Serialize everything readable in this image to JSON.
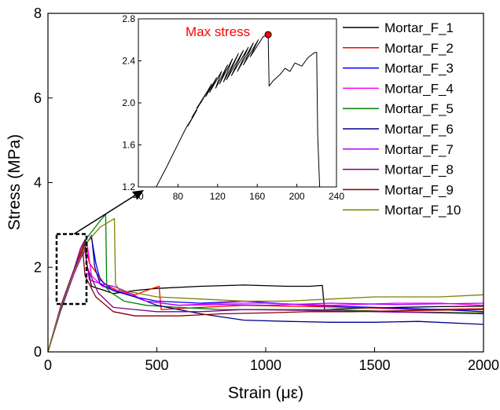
{
  "chart_data": [
    {
      "type": "line",
      "xlabel": "Strain (με)",
      "ylabel": "Stress (MPa)",
      "xlim": [
        0,
        2000
      ],
      "ylim": [
        0,
        8
      ],
      "xticks": [
        "0",
        "500",
        "1000",
        "1500",
        "2000"
      ],
      "yticks": [
        "0",
        "2",
        "4",
        "6",
        "8"
      ],
      "legend_position": "top-right",
      "series": [
        {
          "name": "Mortar_F_1",
          "color": "#000000",
          "x": [
            0,
            60,
            120,
            170,
            176,
            200,
            260,
            300,
            400,
            500,
            700,
            900,
            1100,
            1200,
            1260,
            1270,
            1400,
            1600,
            1800,
            2000
          ],
          "y": [
            0,
            1.05,
            1.9,
            2.65,
            2.15,
            1.55,
            1.45,
            1.38,
            1.45,
            1.5,
            1.55,
            1.58,
            1.55,
            1.55,
            1.57,
            1.0,
            1.03,
            1.05,
            1.07,
            1.08
          ]
        },
        {
          "name": "Mortar_F_2",
          "color": "#ff0000",
          "x": [
            0,
            60,
            120,
            160,
            170,
            190,
            260,
            320,
            400,
            480,
            510,
            520,
            700,
            900,
            1100,
            1400,
            1700,
            2000
          ],
          "y": [
            0,
            1.1,
            1.95,
            2.5,
            2.6,
            2.1,
            1.6,
            1.45,
            1.35,
            1.5,
            1.55,
            1.0,
            1.05,
            1.1,
            1.08,
            1.05,
            1.0,
            1.02
          ]
        },
        {
          "name": "Mortar_F_3",
          "color": "#0000ff",
          "x": [
            0,
            60,
            120,
            170,
            200,
            220,
            240,
            300,
            400,
            500,
            700,
            900,
            1200,
            1500,
            1800,
            2000
          ],
          "y": [
            0,
            1.05,
            1.9,
            2.55,
            2.7,
            2.1,
            1.7,
            1.45,
            1.3,
            1.2,
            1.15,
            1.2,
            1.1,
            1.05,
            1.0,
            0.95
          ]
        },
        {
          "name": "Mortar_F_4",
          "color": "#ff00ff",
          "x": [
            0,
            60,
            120,
            160,
            180,
            200,
            250,
            350,
            450,
            600,
            800,
            1000,
            1300,
            1600,
            1800,
            2000
          ],
          "y": [
            0,
            1.1,
            1.95,
            2.45,
            2.55,
            1.8,
            1.55,
            1.4,
            1.2,
            1.1,
            1.15,
            1.15,
            1.1,
            1.15,
            1.15,
            1.1
          ]
        },
        {
          "name": "Mortar_F_5",
          "color": "#008000",
          "x": [
            0,
            60,
            120,
            180,
            240,
            265,
            270,
            290,
            350,
            450,
            600,
            800,
            1000,
            1300,
            1600,
            2000
          ],
          "y": [
            0,
            1.05,
            1.9,
            2.7,
            3.1,
            3.25,
            1.5,
            1.4,
            1.2,
            1.1,
            1.05,
            1.0,
            1.0,
            1.0,
            0.95,
            0.92
          ]
        },
        {
          "name": "Mortar_F_6",
          "color": "#00008b",
          "x": [
            0,
            60,
            120,
            170,
            200,
            215,
            240,
            300,
            400,
            500,
            700,
            900,
            1100,
            1300,
            1500,
            1700,
            2000
          ],
          "y": [
            0,
            1.0,
            1.85,
            2.5,
            2.75,
            2.0,
            1.6,
            1.45,
            1.3,
            1.1,
            0.9,
            0.75,
            0.72,
            0.7,
            0.7,
            0.72,
            0.65
          ]
        },
        {
          "name": "Mortar_F_7",
          "color": "#b000ff",
          "x": [
            0,
            60,
            120,
            150,
            170,
            190,
            250,
            300,
            350,
            450,
            600,
            800,
            1000,
            1300,
            1600,
            2000
          ],
          "y": [
            0,
            1.05,
            1.85,
            2.2,
            2.4,
            1.7,
            1.6,
            1.55,
            1.45,
            1.2,
            1.1,
            1.12,
            1.1,
            1.15,
            1.12,
            1.15
          ]
        },
        {
          "name": "Mortar_F_8",
          "color": "#800080",
          "x": [
            0,
            60,
            120,
            150,
            165,
            180,
            230,
            300,
            400,
            500,
            700,
            900,
            1200,
            1500,
            1800,
            2000
          ],
          "y": [
            0,
            1.1,
            1.95,
            2.45,
            2.6,
            2.0,
            1.4,
            1.05,
            1.0,
            0.95,
            0.95,
            1.0,
            0.98,
            0.95,
            0.92,
            0.9
          ]
        },
        {
          "name": "Mortar_F_9",
          "color": "#800000",
          "x": [
            0,
            60,
            120,
            150,
            160,
            170,
            220,
            300,
            400,
            600,
            800,
            1000,
            1200,
            1400,
            1700,
            2000
          ],
          "y": [
            0,
            1.05,
            1.9,
            2.3,
            2.4,
            1.8,
            1.3,
            0.95,
            0.85,
            0.85,
            0.9,
            0.92,
            0.95,
            0.95,
            0.98,
            1.0
          ]
        },
        {
          "name": "Mortar_F_10",
          "color": "#808000",
          "x": [
            0,
            60,
            120,
            180,
            240,
            290,
            305,
            310,
            330,
            400,
            500,
            700,
            900,
            1100,
            1300,
            1500,
            1800,
            2000
          ],
          "y": [
            0,
            1.05,
            1.9,
            2.6,
            2.95,
            3.1,
            3.15,
            1.6,
            1.45,
            1.4,
            1.3,
            1.25,
            1.2,
            1.2,
            1.25,
            1.3,
            1.3,
            1.35
          ]
        }
      ]
    },
    {
      "type": "line",
      "xlim": [
        40,
        240
      ],
      "ylim": [
        1.2,
        2.8
      ],
      "xticks": [
        "40",
        "80",
        "120",
        "160",
        "200",
        "240"
      ],
      "yticks": [
        "1.2",
        "1.6",
        "2.0",
        "2.4",
        "2.8"
      ],
      "annotation": "Max stress",
      "max_point": {
        "x": 171,
        "y": 2.65
      },
      "series": [
        {
          "color": "#000000",
          "x": [
            58,
            68,
            78,
            88,
            94,
            90,
            99,
            94,
            104,
            99,
            109,
            103,
            114,
            108,
            119,
            112,
            124,
            118,
            130,
            122,
            135,
            126,
            141,
            129,
            146,
            134,
            151,
            140,
            156,
            146,
            161,
            153,
            166,
            171,
            172,
            176,
            183,
            188,
            193,
            198,
            205,
            211,
            218,
            220,
            221,
            223
          ],
          "y": [
            1.2,
            1.38,
            1.57,
            1.76,
            1.85,
            1.78,
            1.93,
            1.86,
            2.02,
            1.95,
            2.1,
            2.0,
            2.18,
            2.06,
            2.24,
            2.1,
            2.3,
            2.14,
            2.36,
            2.18,
            2.42,
            2.2,
            2.47,
            2.22,
            2.5,
            2.26,
            2.53,
            2.3,
            2.57,
            2.36,
            2.6,
            2.44,
            2.63,
            2.65,
            2.16,
            2.21,
            2.27,
            2.33,
            2.3,
            2.38,
            2.35,
            2.43,
            2.48,
            2.48,
            1.7,
            1.2
          ]
        }
      ]
    }
  ]
}
